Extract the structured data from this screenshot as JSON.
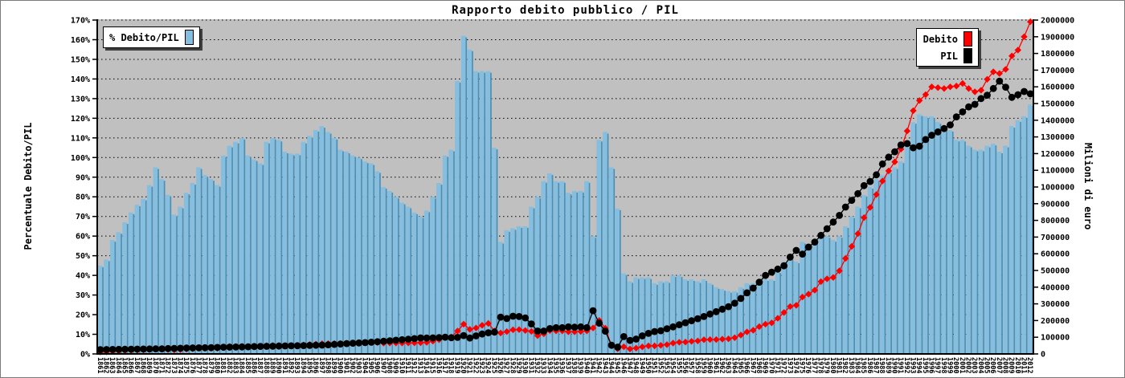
{
  "page": {
    "title": "Rapporto debito pubblico / PIL"
  },
  "colors": {
    "plot_bg": "#c0c0c0",
    "bar_face": "#85bedf",
    "bar_shade": "#4d8fb3",
    "debito_line": "#ff0000",
    "pil_line": "#000000",
    "grid": "#000000"
  },
  "legend_ratio": {
    "label": "% Debito/PIL"
  },
  "legend_series": {
    "debito_label": "Debito",
    "pil_label": "PIL"
  },
  "chart_data": {
    "type": "combo-bar-line",
    "title": "Rapporto debito pubblico / PIL",
    "left_axis": {
      "label": "Percentuale Debito/PIL",
      "min": 0,
      "max": 170,
      "step": 10,
      "tick_labels": [
        "0%",
        "10%",
        "20%",
        "30%",
        "40%",
        "50%",
        "60%",
        "70%",
        "80%",
        "90%",
        "100%",
        "110%",
        "120%",
        "130%",
        "140%",
        "150%",
        "160%",
        "170%"
      ]
    },
    "right_axis": {
      "label": "Milioni di euro",
      "min": 0,
      "max": 2000000,
      "step": 100000,
      "tick_labels": [
        "0",
        "100000",
        "200000",
        "300000",
        "400000",
        "500000",
        "600000",
        "700000",
        "800000",
        "900000",
        "1000000",
        "1100000",
        "1200000",
        "1300000",
        "1400000",
        "1500000",
        "1600000",
        "1700000",
        "1800000",
        "1900000",
        "2000000"
      ]
    },
    "grid": "horizontal-dotted",
    "years": [
      1861,
      1862,
      1863,
      1864,
      1865,
      1866,
      1867,
      1868,
      1869,
      1870,
      1871,
      1872,
      1873,
      1874,
      1875,
      1876,
      1877,
      1878,
      1879,
      1880,
      1881,
      1882,
      1883,
      1884,
      1885,
      1886,
      1887,
      1888,
      1889,
      1890,
      1891,
      1892,
      1893,
      1894,
      1895,
      1896,
      1897,
      1898,
      1899,
      1900,
      1901,
      1902,
      1903,
      1904,
      1905,
      1906,
      1907,
      1908,
      1909,
      1910,
      1911,
      1912,
      1913,
      1914,
      1915,
      1916,
      1917,
      1918,
      1919,
      1920,
      1921,
      1922,
      1923,
      1924,
      1925,
      1926,
      1927,
      1928,
      1929,
      1930,
      1931,
      1932,
      1933,
      1934,
      1935,
      1936,
      1937,
      1938,
      1939,
      1940,
      1941,
      1942,
      1943,
      1944,
      1945,
      1946,
      1947,
      1948,
      1949,
      1950,
      1951,
      1952,
      1953,
      1954,
      1955,
      1956,
      1957,
      1958,
      1959,
      1960,
      1961,
      1962,
      1963,
      1964,
      1965,
      1966,
      1967,
      1968,
      1969,
      1970,
      1971,
      1972,
      1973,
      1974,
      1975,
      1976,
      1977,
      1978,
      1979,
      1980,
      1981,
      1982,
      1983,
      1984,
      1985,
      1986,
      1987,
      1988,
      1989,
      1990,
      1991,
      1992,
      1993,
      1994,
      1995,
      1996,
      1997,
      1998,
      1999,
      2000,
      2001,
      2002,
      2003,
      2004,
      2005,
      2006,
      2007,
      2008,
      2009,
      2010,
      2011,
      2012
    ],
    "series": [
      {
        "name": "% Debito/PIL",
        "type": "bar",
        "axis": "left",
        "unit": "%",
        "values": [
          45,
          48,
          58,
          62,
          67,
          72,
          76,
          79,
          86,
          95,
          89,
          81,
          71,
          75,
          82,
          87,
          95,
          91,
          89,
          86,
          101,
          106,
          108,
          110,
          101,
          99,
          97,
          108,
          110,
          109,
          103,
          102,
          102,
          108,
          111,
          114,
          116,
          113,
          110,
          104,
          103,
          101,
          100,
          98,
          97,
          93,
          85,
          83,
          80,
          77,
          75,
          72,
          70,
          73,
          80,
          87,
          101,
          104,
          139,
          162,
          155,
          144,
          144,
          144,
          105,
          57,
          63,
          64,
          65,
          65,
          75,
          80,
          88,
          92,
          88,
          88,
          82,
          83,
          83,
          88,
          60,
          109,
          113,
          95,
          74,
          41,
          37,
          39,
          39,
          39,
          36,
          37,
          37,
          40,
          40,
          38,
          38,
          37,
          38,
          36,
          34,
          33,
          32,
          32,
          34,
          36,
          36,
          38,
          38,
          38,
          42,
          47,
          49,
          47,
          57,
          56,
          57,
          61,
          60,
          58,
          60,
          65,
          70,
          75,
          81,
          85,
          89,
          91,
          93,
          95,
          98,
          106,
          118,
          122,
          121,
          121,
          118,
          115,
          114,
          109,
          109,
          106,
          104,
          104,
          106,
          107,
          103,
          106,
          116,
          119,
          121,
          127
        ]
      },
      {
        "name": "Debito",
        "type": "line",
        "axis": "right",
        "unit": "Milioni di euro",
        "marker": "diamond",
        "values": [
          11700,
          12700,
          15700,
          17000,
          18800,
          20500,
          22000,
          23300,
          25800,
          29000,
          27600,
          25900,
          23400,
          25500,
          28700,
          31300,
          34700,
          33700,
          33800,
          33500,
          40400,
          43500,
          44800,
          46200,
          43400,
          43600,
          43700,
          49100,
          50600,
          51200,
          49400,
          49500,
          50000,
          54000,
          56600,
          59300,
          61500,
          62200,
          62700,
          61400,
          63900,
          64600,
          66000,
          66600,
          67900,
          67900,
          64600,
          65600,
          65600,
          65500,
          66000,
          66200,
          67200,
          69400,
          76800,
          85300,
          101000,
          100900,
          137600,
          178200,
          147300,
          155500,
          171400,
          182900,
          137600,
          125400,
          133600,
          144600,
          145600,
          140400,
          135000,
          109600,
          120600,
          139800,
          138200,
          138200,
          132800,
          132800,
          134500,
          138200,
          155400,
          200600,
          153700,
          49400,
          30300,
          42600,
          30000,
          34700,
          42100,
          48000,
          48200,
          51400,
          55900,
          64800,
          70000,
          71100,
          75600,
          78100,
          85100,
          86000,
          86000,
          88400,
          90600,
          97300,
          112900,
          131800,
          141800,
          163400,
          178600,
          186200,
          213400,
          248200,
          284200,
          291400,
          340900,
          358400,
          381900,
          433100,
          450000,
          458200,
          498000,
          572000,
          644000,
          720000,
          816500,
          878100,
          955000,
          1035600,
          1096500,
          1150500,
          1227000,
          1335600,
          1457300,
          1517700,
          1553600,
          1600000,
          1595000,
          1590000,
          1600000,
          1605000,
          1620000,
          1590000,
          1570000,
          1580000,
          1645000,
          1690000,
          1680000,
          1705000,
          1785000,
          1820000,
          1900000,
          1990000
        ]
      },
      {
        "name": "PIL",
        "type": "line",
        "axis": "right",
        "unit": "Milioni di euro",
        "marker": "circle",
        "values": [
          26000,
          26500,
          27000,
          27500,
          28000,
          28500,
          29000,
          29500,
          30000,
          30500,
          31000,
          32000,
          33000,
          34000,
          35000,
          36000,
          36500,
          37000,
          38000,
          39000,
          40000,
          41000,
          41500,
          42000,
          43000,
          44000,
          45000,
          45500,
          46000,
          47000,
          48000,
          48500,
          49000,
          50000,
          51000,
          52000,
          53000,
          55000,
          57000,
          59000,
          62000,
          64000,
          66000,
          68000,
          70000,
          73000,
          76000,
          79000,
          82000,
          85000,
          88000,
          92000,
          96000,
          95000,
          96000,
          98000,
          100000,
          97000,
          99000,
          110000,
          95000,
          108000,
          119000,
          127000,
          131000,
          220000,
          212000,
          226000,
          224000,
          216000,
          180000,
          137000,
          137000,
          152000,
          157000,
          157000,
          162000,
          160000,
          162000,
          157000,
          259000,
          184000,
          136000,
          52000,
          41000,
          104000,
          81000,
          89000,
          108000,
          123000,
          134000,
          139000,
          151000,
          162000,
          175000,
          187000,
          199000,
          211000,
          224000,
          239000,
          253000,
          268000,
          283000,
          304000,
          332000,
          366000,
          394000,
          430000,
          470000,
          490000,
          508000,
          528000,
          580000,
          620000,
          598000,
          640000,
          670000,
          710000,
          750000,
          790000,
          830000,
          880000,
          920000,
          960000,
          1008000,
          1033000,
          1073000,
          1138000,
          1179000,
          1211000,
          1252000,
          1260000,
          1235000,
          1244000,
          1284000,
          1310000,
          1330000,
          1350000,
          1372000,
          1420000,
          1450000,
          1480000,
          1495000,
          1530000,
          1550000,
          1590000,
          1634000,
          1598000,
          1537000,
          1553000,
          1572000,
          1558000
        ]
      }
    ],
    "layout": {
      "legend_ratio_position": "top-left",
      "legend_series_position": "top-right"
    }
  }
}
